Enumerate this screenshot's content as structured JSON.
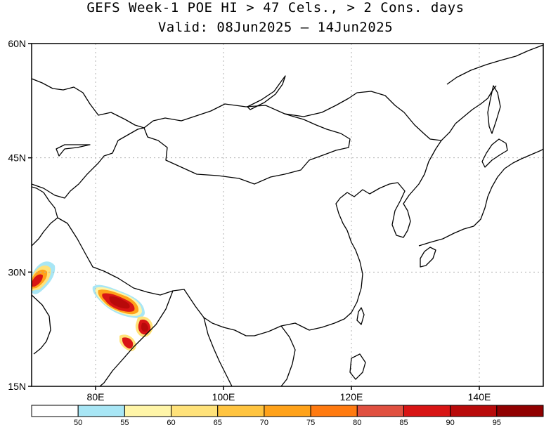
{
  "title": {
    "line1": "GEFS Week-1 POE HI > 47 Cels., > 2 Cons. days",
    "line2": "Valid: 08Jun2025 – 14Jun2025"
  },
  "map": {
    "extent": {
      "lon_min": 70,
      "lon_max": 150,
      "lat_min": 15,
      "lat_max": 60
    },
    "lat_labels": [
      {
        "lat": 60,
        "text": "60N"
      },
      {
        "lat": 45,
        "text": "45N"
      },
      {
        "lat": 30,
        "text": "30N"
      },
      {
        "lat": 15,
        "text": "15N"
      }
    ],
    "lon_labels": [
      {
        "lon": 80,
        "text": "80E"
      },
      {
        "lon": 100,
        "text": "100E"
      },
      {
        "lon": 120,
        "text": "120E"
      },
      {
        "lon": 140,
        "text": "140E"
      }
    ],
    "grid": "dotted"
  },
  "legend": {
    "colors": [
      "#ffffff",
      "#a8e6f5",
      "#fff5a8",
      "#ffe27a",
      "#ffc440",
      "#ffa21a",
      "#ff7a10",
      "#e05040",
      "#d81515",
      "#b80a0a",
      "#900000"
    ],
    "labels": [
      "50",
      "55",
      "60",
      "65",
      "70",
      "75",
      "80",
      "85",
      "90",
      "95"
    ]
  }
}
